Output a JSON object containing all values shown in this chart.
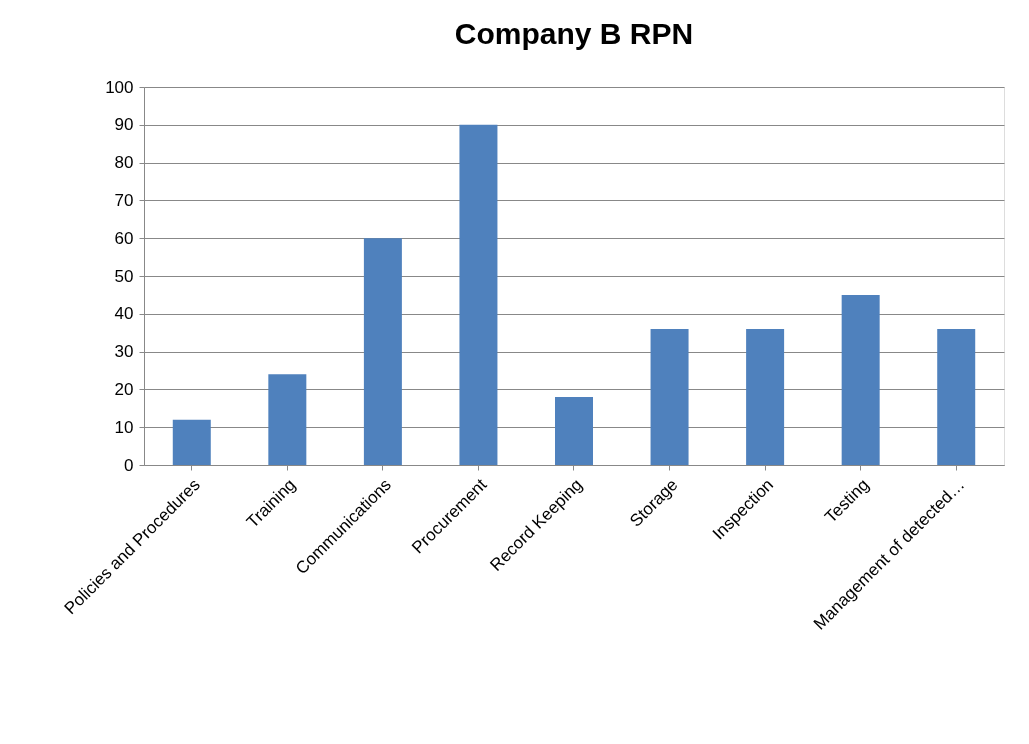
{
  "chart_data": {
    "type": "bar",
    "title": "Company B RPN",
    "categories": [
      "Policies and Procedures",
      "Training",
      "Communications",
      "Procurement",
      "Record Keeping",
      "Storage",
      "Inspection",
      "Testing",
      "Management of detected…"
    ],
    "values": [
      12,
      24,
      60,
      90,
      18,
      36,
      36,
      45,
      36
    ],
    "color": "#4f81bd",
    "ylim": [
      0,
      100
    ],
    "yticks": [
      0,
      10,
      20,
      30,
      40,
      50,
      60,
      70,
      80,
      90,
      100
    ],
    "grid": "y"
  }
}
